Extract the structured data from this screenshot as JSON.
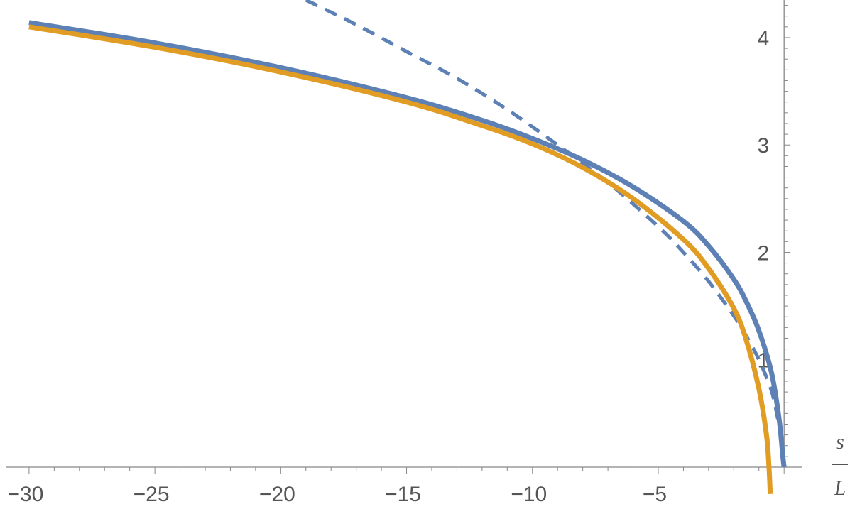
{
  "chart_data": {
    "type": "line",
    "title": "",
    "xlabel": {
      "numerator": "s",
      "denominator": "L"
    },
    "ylabel": "",
    "xlim": [
      -30.9,
      0.7
    ],
    "ylim": [
      0,
      4.35
    ],
    "x_ticks": [
      -30,
      -25,
      -20,
      -15,
      -10,
      -5
    ],
    "x_tick_labels": [
      "−30",
      "−25",
      "−20",
      "−15",
      "−10",
      "−5"
    ],
    "y_ticks": [
      1,
      2,
      3,
      4
    ],
    "y_tick_labels": [
      "1",
      "2",
      "3",
      "4"
    ],
    "grid": false,
    "legend": "none",
    "series": [
      {
        "style": "solid",
        "color": "#5e81b5",
        "points": [
          [
            -30,
            4.14
          ],
          [
            -25,
            3.95
          ],
          [
            -20,
            3.72
          ],
          [
            -15,
            3.44
          ],
          [
            -12,
            3.23
          ],
          [
            -10,
            3.06
          ],
          [
            -8,
            2.86
          ],
          [
            -6,
            2.61
          ],
          [
            -4,
            2.29
          ],
          [
            -3,
            2.06
          ],
          [
            -2,
            1.75
          ],
          [
            -1.5,
            1.54
          ],
          [
            -1,
            1.27
          ],
          [
            -0.5,
            0.88
          ],
          [
            -0.2,
            0.45
          ],
          [
            -0.05,
            0.1
          ],
          [
            0,
            0.0
          ]
        ]
      },
      {
        "style": "solid",
        "color": "#e19c24",
        "points": [
          [
            -30,
            4.1
          ],
          [
            -25,
            3.91
          ],
          [
            -20,
            3.68
          ],
          [
            -15,
            3.4
          ],
          [
            -12,
            3.18
          ],
          [
            -10,
            3.01
          ],
          [
            -8,
            2.79
          ],
          [
            -6,
            2.5
          ],
          [
            -4,
            2.12
          ],
          [
            -3,
            1.85
          ],
          [
            -2,
            1.48
          ],
          [
            -1.5,
            1.18
          ],
          [
            -1,
            0.73
          ],
          [
            -0.7,
            0.3
          ],
          [
            -0.6,
            0.0
          ],
          [
            -0.55,
            -0.25
          ]
        ]
      },
      {
        "style": "dashed",
        "color": "#5e81b5",
        "points": [
          [
            -19,
            4.35
          ],
          [
            -17,
            4.12
          ],
          [
            -15,
            3.87
          ],
          [
            -13,
            3.62
          ],
          [
            -11,
            3.33
          ],
          [
            -9,
            3.0
          ],
          [
            -7,
            2.65
          ],
          [
            -5,
            2.24
          ],
          [
            -4,
            2.0
          ],
          [
            -3,
            1.73
          ],
          [
            -2,
            1.41
          ],
          [
            -1.5,
            1.22
          ],
          [
            -1,
            1.0
          ],
          [
            -0.5,
            0.71
          ],
          [
            -0.25,
            0.45
          ]
        ]
      }
    ]
  }
}
